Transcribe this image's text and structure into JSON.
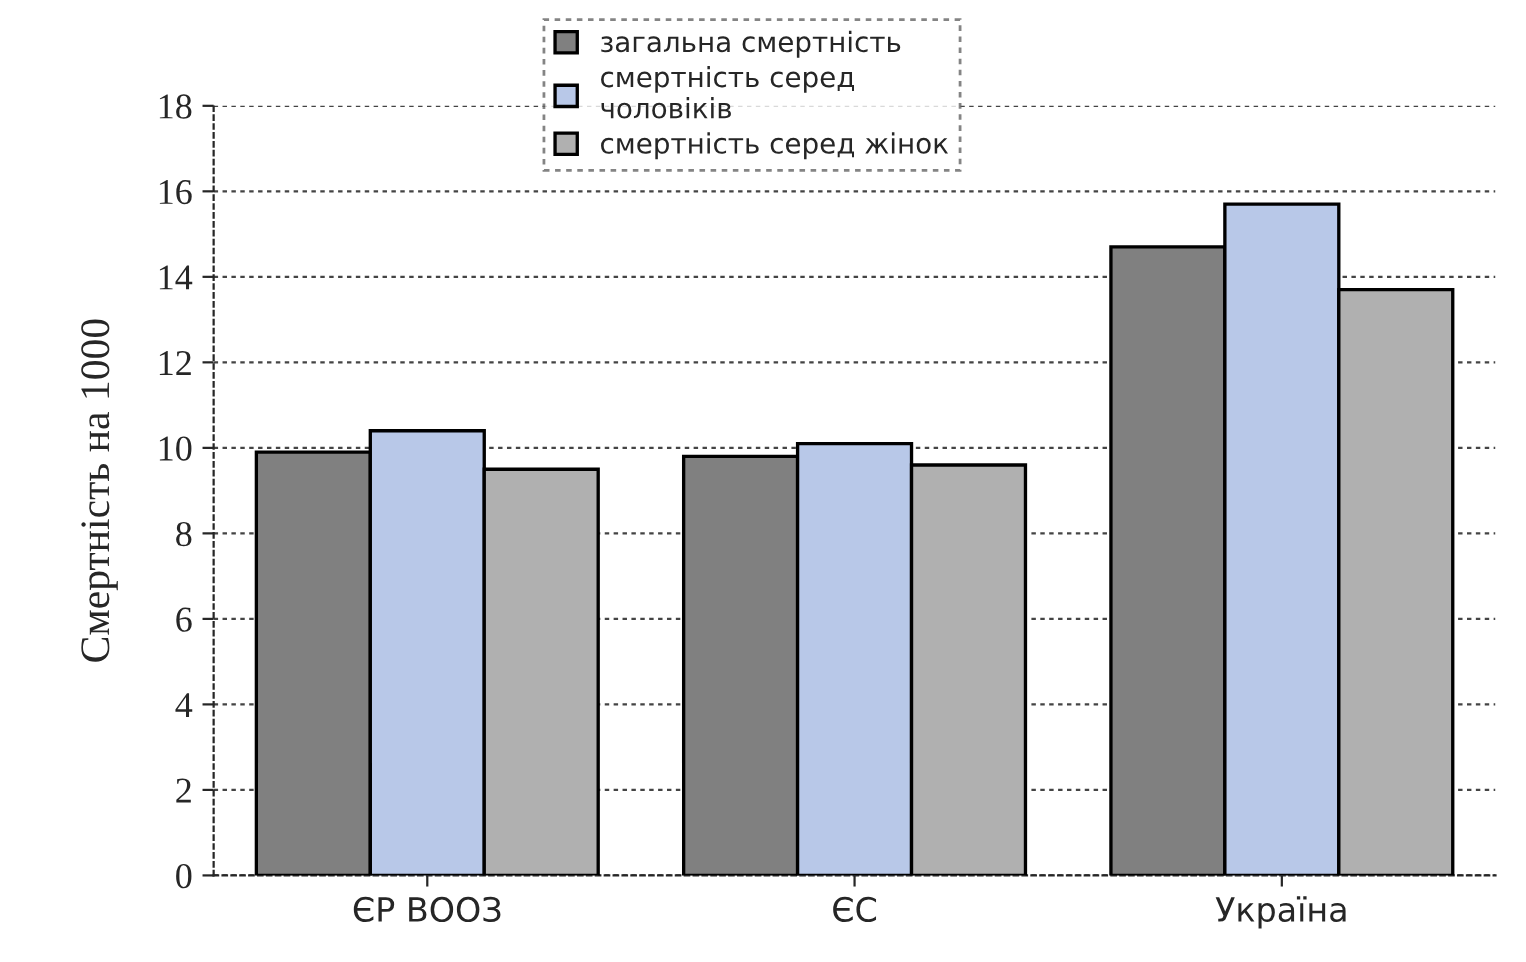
{
  "chart_data": {
    "type": "bar",
    "ylabel": "Смертність на 1000",
    "categories": [
      "ЄР ВООЗ",
      "ЄС",
      "Україна"
    ],
    "series": [
      {
        "name": "загальна смертність",
        "color": "#808080",
        "values": [
          9.9,
          9.8,
          14.7
        ]
      },
      {
        "name": "смертність серед чоловіків",
        "color": "#b8c8e8",
        "values": [
          10.4,
          10.1,
          15.7
        ]
      },
      {
        "name": "смертність серед жінок",
        "color": "#b0b0b0",
        "values": [
          9.5,
          9.6,
          13.7
        ]
      }
    ],
    "ylim": [
      0,
      18
    ],
    "yticks": [
      0,
      2,
      4,
      6,
      8,
      10,
      12,
      14,
      16,
      18
    ],
    "grid": "y",
    "legend": "top"
  }
}
